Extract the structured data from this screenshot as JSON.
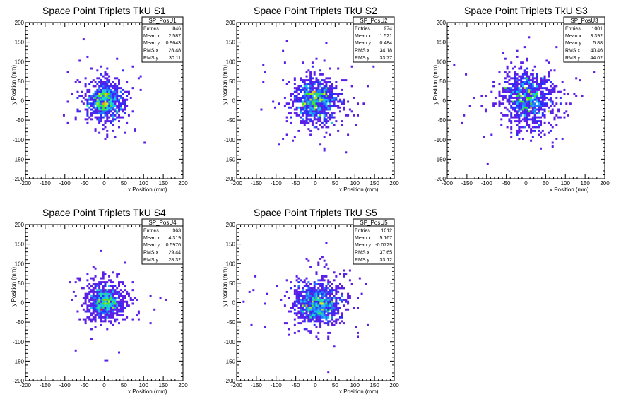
{
  "chart_data": [
    {
      "type": "heatmap",
      "title": "Space Point Triplets TkU S1",
      "xlabel": "x Position (mm)",
      "ylabel": "y Position (mm)",
      "xlim": [
        -200,
        200
      ],
      "ylim": [
        -200,
        200
      ],
      "xticks": [
        "-200",
        "-150",
        "-100",
        "-50",
        "0",
        "50",
        "100",
        "150",
        "200"
      ],
      "yticks": [
        "-200",
        "-150",
        "-100",
        "-50",
        "0",
        "50",
        "100",
        "150",
        "200"
      ],
      "stats": {
        "name": "SP_PosU1",
        "rows": [
          {
            "label": "Entries",
            "value": "846"
          },
          {
            "label": "Mean x",
            "value": "2.587"
          },
          {
            "label": "Mean y",
            "value": "0.9643"
          },
          {
            "label": "RMS x",
            "value": "28.48"
          },
          {
            "label": "RMS y",
            "value": "30.11"
          }
        ]
      },
      "entries": 846,
      "mean_x": 2.587,
      "mean_y": 0.9643,
      "rms_x": 28.48,
      "rms_y": 30.11
    },
    {
      "type": "heatmap",
      "title": "Space Point Triplets TkU S2",
      "xlabel": "x Position (mm)",
      "ylabel": "y Position (mm)",
      "xlim": [
        -200,
        200
      ],
      "ylim": [
        -200,
        200
      ],
      "xticks": [
        "-200",
        "-150",
        "-100",
        "-50",
        "0",
        "50",
        "100",
        "150",
        "200"
      ],
      "yticks": [
        "-200",
        "-150",
        "-100",
        "-50",
        "0",
        "50",
        "100",
        "150",
        "200"
      ],
      "stats": {
        "name": "SP_PosU2",
        "rows": [
          {
            "label": "Entries",
            "value": "974"
          },
          {
            "label": "Mean x",
            "value": "1.521"
          },
          {
            "label": "Mean y",
            "value": "0.484"
          },
          {
            "label": "RMS x",
            "value": "34.18"
          },
          {
            "label": "RMS y",
            "value": "33.77"
          }
        ]
      },
      "entries": 974,
      "mean_x": 1.521,
      "mean_y": 0.484,
      "rms_x": 34.18,
      "rms_y": 33.77
    },
    {
      "type": "heatmap",
      "title": "Space Point Triplets TkU S3",
      "xlabel": "x Position (mm)",
      "ylabel": "y Position (mm)",
      "xlim": [
        -200,
        200
      ],
      "ylim": [
        -200,
        200
      ],
      "xticks": [
        "-200",
        "-150",
        "-100",
        "-50",
        "0",
        "50",
        "100",
        "150",
        "200"
      ],
      "yticks": [
        "-200",
        "-150",
        "-100",
        "-50",
        "0",
        "50",
        "100",
        "150",
        "200"
      ],
      "stats": {
        "name": "SP_PosU3",
        "rows": [
          {
            "label": "Entries",
            "value": "1001"
          },
          {
            "label": "Mean x",
            "value": "3.392"
          },
          {
            "label": "Mean y",
            "value": "5.88"
          },
          {
            "label": "RMS x",
            "value": "40.46"
          },
          {
            "label": "RMS y",
            "value": "44.02"
          }
        ]
      },
      "entries": 1001,
      "mean_x": 3.392,
      "mean_y": 5.88,
      "rms_x": 40.46,
      "rms_y": 44.02
    },
    {
      "type": "heatmap",
      "title": "Space Point Triplets TkU S4",
      "xlabel": "x Position (mm)",
      "ylabel": "y Position (mm)",
      "xlim": [
        -200,
        200
      ],
      "ylim": [
        -200,
        200
      ],
      "xticks": [
        "-200",
        "-150",
        "-100",
        "-50",
        "0",
        "50",
        "100",
        "150",
        "200"
      ],
      "yticks": [
        "-200",
        "-150",
        "-100",
        "-50",
        "0",
        "50",
        "100",
        "150",
        "200"
      ],
      "stats": {
        "name": "SP_PosU4",
        "rows": [
          {
            "label": "Entries",
            "value": "963"
          },
          {
            "label": "Mean x",
            "value": "4.319"
          },
          {
            "label": "Mean y",
            "value": "0.5976"
          },
          {
            "label": "RMS x",
            "value": "29.44"
          },
          {
            "label": "RMS y",
            "value": "28.32"
          }
        ]
      },
      "entries": 963,
      "mean_x": 4.319,
      "mean_y": 0.5976,
      "rms_x": 29.44,
      "rms_y": 28.32
    },
    {
      "type": "heatmap",
      "title": "Space Point Triplets TkU S5",
      "xlabel": "x Position (mm)",
      "ylabel": "y Position (mm)",
      "xlim": [
        -200,
        200
      ],
      "ylim": [
        -200,
        200
      ],
      "xticks": [
        "-200",
        "-150",
        "-100",
        "-50",
        "0",
        "50",
        "100",
        "150",
        "200"
      ],
      "yticks": [
        "-200",
        "-150",
        "-100",
        "-50",
        "0",
        "50",
        "100",
        "150",
        "200"
      ],
      "stats": {
        "name": "SP_PosU5",
        "rows": [
          {
            "label": "Entries",
            "value": "1012"
          },
          {
            "label": "Mean x",
            "value": "5.167"
          },
          {
            "label": "Mean y",
            "value": "-0.0729"
          },
          {
            "label": "RMS x",
            "value": "37.65"
          },
          {
            "label": "RMS y",
            "value": "33.12"
          }
        ]
      },
      "entries": 1012,
      "mean_x": 5.167,
      "mean_y": -0.0729,
      "rms_x": 37.65,
      "rms_y": 33.12
    }
  ],
  "palette": [
    "#5a1ee6",
    "#2a2dfa",
    "#1f78ff",
    "#18c0f0",
    "#1ee6a0",
    "#3ce628",
    "#b4e61e",
    "#f0e614",
    "#ff8c14",
    "#e61e1e"
  ]
}
